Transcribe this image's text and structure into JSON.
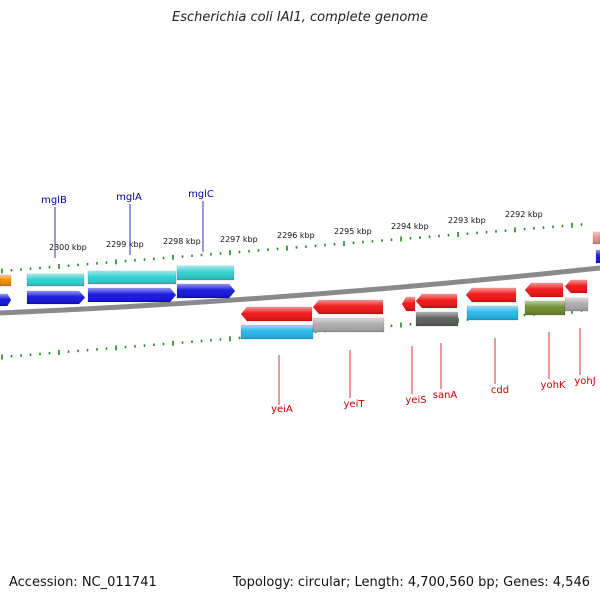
{
  "title": "Escherichia coli IAI1, complete genome",
  "footer": {
    "accession": "Accession: NC_011741",
    "info": "Topology: circular; Length: 4,700,560 bp; Genes: 4,546"
  },
  "colors": {
    "backbone": "#8a8a8a",
    "tick": "#1f8a1f",
    "label_top": "#0000aa",
    "label_bottom": "#cc0000",
    "red": "#ee1111",
    "blue": "#1010dd",
    "cyan": "#2ccfd0",
    "sky": "#22b5e8",
    "orange": "#f28a00",
    "gray": "#aaaaaa",
    "dark": "#5a5a5a",
    "olive": "#6b8a2a",
    "pink": "#e88a8a"
  },
  "scale_labels": [
    "2300 kbp",
    "2299 kbp",
    "2298 kbp",
    "2297 kbp",
    "2296 kbp",
    "2295 kbp",
    "2294 kbp",
    "2293 kbp",
    "2292 kbp"
  ],
  "genes_top": [
    "mglB",
    "mglA",
    "mglC"
  ],
  "genes_bottom": [
    "yeiA",
    "yeiT",
    "yeiS",
    "sanA",
    "cdd",
    "yohK",
    "yohJ"
  ]
}
